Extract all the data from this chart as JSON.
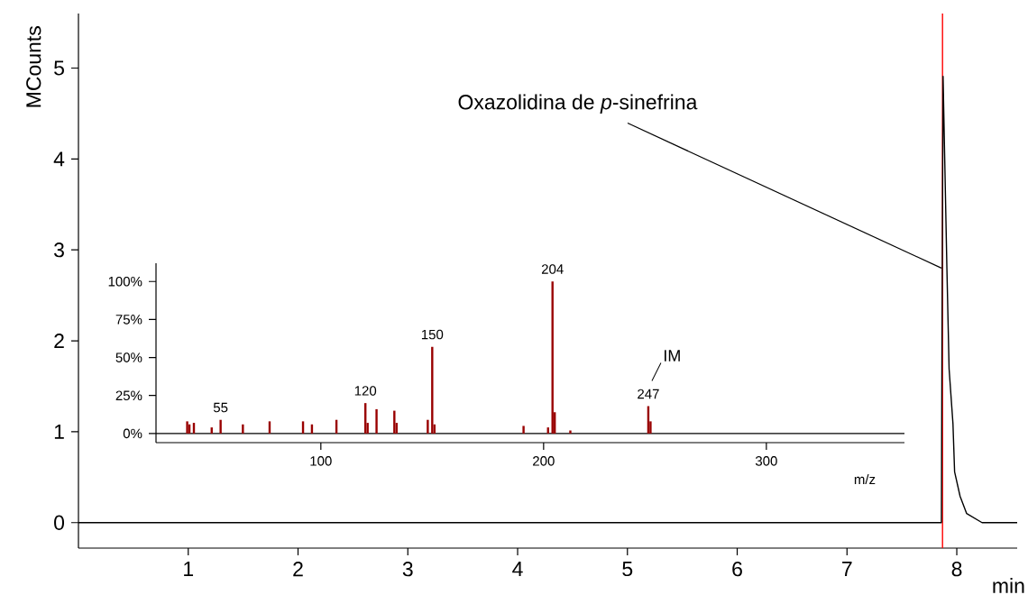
{
  "chart_data": [
    {
      "type": "line",
      "xlabel": "min",
      "ylabel": "MCounts",
      "x": [
        0,
        7.86,
        7.865,
        7.875,
        7.91,
        7.93,
        7.965,
        7.98,
        8.03,
        8.09,
        8.23,
        8.55
      ],
      "values": [
        0,
        0,
        1.95,
        4.91,
        2.79,
        1.69,
        1.09,
        0.56,
        0.29,
        0.1,
        0,
        0
      ],
      "color": "#000000",
      "xlim": [
        0,
        8.55
      ],
      "ylim": [
        -0.28,
        5.6
      ],
      "xticks": [
        1,
        2,
        3,
        4,
        5,
        6,
        7,
        8
      ],
      "yticks": [
        0,
        1,
        2,
        3,
        4,
        5
      ],
      "ref_lines": [
        {
          "axis": "x",
          "value": 7.87,
          "color": "#ff0000"
        }
      ],
      "annotations": [
        {
          "text": "Oxazolidina de *p*-sinefrina",
          "x": 7.86,
          "y": 2.8
        }
      ]
    },
    {
      "type": "bar",
      "xlabel": "m/z",
      "x": [
        40,
        41,
        43,
        51,
        55,
        65,
        77,
        92,
        96,
        107,
        120,
        121,
        125,
        133,
        134,
        148,
        150,
        151,
        191,
        202,
        204,
        205,
        212,
        247,
        248
      ],
      "values": [
        8,
        6,
        7,
        4,
        9,
        6,
        8,
        8,
        6,
        9,
        20,
        7,
        16,
        15,
        7,
        9,
        57,
        6,
        5,
        4,
        100,
        14,
        2,
        18,
        8
      ],
      "color": "#990000",
      "xlim": [
        26,
        362
      ],
      "ylim": [
        -6,
        112
      ],
      "xticks": [
        100,
        200,
        300
      ],
      "yticks": [
        {
          "value": 0,
          "label": "0%"
        },
        {
          "value": 25,
          "label": "25%"
        },
        {
          "value": 50,
          "label": "50%"
        },
        {
          "value": 75,
          "label": "75%"
        },
        {
          "value": 100,
          "label": "100%"
        }
      ],
      "ref_lines": [
        {
          "axis": "y",
          "value": 0,
          "color": "#000000"
        }
      ],
      "annotations": [
        {
          "text": "55",
          "x": 55,
          "y": 9
        },
        {
          "text": "120",
          "x": 120,
          "y": 20
        },
        {
          "text": "150",
          "x": 150,
          "y": 57
        },
        {
          "text": "204",
          "x": 204,
          "y": 100
        },
        {
          "text": "247",
          "x": 247,
          "y": 18
        },
        {
          "text": "IM",
          "x": 247,
          "y": 18
        }
      ]
    }
  ]
}
